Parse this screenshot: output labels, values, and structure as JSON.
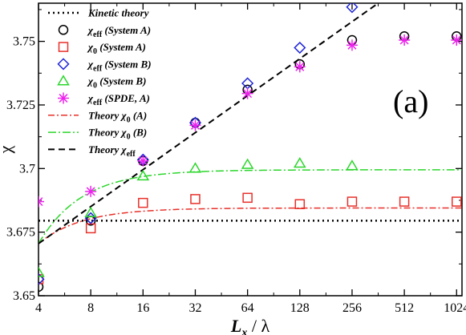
{
  "chart_data": {
    "type": "scatter",
    "panel_label": "(a)",
    "xlabel": "L_x / λ",
    "ylabel": "χ",
    "x_scale": "log2",
    "xlim": [
      4,
      1100
    ],
    "ylim": [
      3.65,
      3.765
    ],
    "x_ticks": [
      4,
      8,
      16,
      32,
      64,
      128,
      256,
      512,
      1024
    ],
    "x_tick_labels": [
      "4",
      "8",
      "16",
      "32",
      "64",
      "128",
      "256",
      "512",
      "1024"
    ],
    "y_ticks": [
      3.65,
      3.675,
      3.7,
      3.725,
      3.75
    ],
    "y_tick_labels": [
      "3.65",
      "3.675",
      "3.7",
      "3.725",
      "3.75"
    ],
    "legend_position": "top-left",
    "colors": {
      "kinetic": "#000000",
      "chi_eff_A": "#000000",
      "chi0_A": "#e8302a",
      "chi_eff_B": "#1f25d8",
      "chi0_B": "#2bd62b",
      "spde": "#ee22ee",
      "theory_A": "#e8302a",
      "theory_B": "#2bd62b",
      "theory_eff": "#000000"
    },
    "series": [
      {
        "key": "kinetic",
        "name": "Kinetic theory",
        "sub": "",
        "tail": "",
        "kind": "hline",
        "value": 3.6795
      },
      {
        "key": "chi_eff_A",
        "name": "χ",
        "sub": "eff",
        "tail": " (System A)",
        "kind": "marker",
        "marker": "circle",
        "x": [
          4,
          8,
          16,
          32,
          64,
          128,
          256,
          512,
          1024
        ],
        "y": [
          3.6535,
          3.6795,
          3.703,
          3.718,
          3.731,
          3.741,
          3.7505,
          3.752,
          3.752
        ]
      },
      {
        "key": "chi0_A",
        "name": "χ",
        "sub": "0",
        "tail": " (System A)",
        "kind": "marker",
        "marker": "square",
        "x": [
          4,
          8,
          16,
          32,
          64,
          128,
          256,
          512,
          1024
        ],
        "y": [
          3.6565,
          3.6765,
          3.6865,
          3.688,
          3.6885,
          3.686,
          3.687,
          3.687,
          3.687
        ]
      },
      {
        "key": "chi_eff_B",
        "name": "χ",
        "sub": "eff",
        "tail": " (System B)",
        "kind": "marker",
        "marker": "diamond",
        "x": [
          4,
          8,
          16,
          32,
          64,
          128,
          256
        ],
        "y": [
          3.6565,
          3.6805,
          3.7035,
          3.718,
          3.7335,
          3.7475,
          3.7635
        ]
      },
      {
        "key": "chi0_B",
        "name": "χ",
        "sub": "0",
        "tail": " (System B)",
        "kind": "marker",
        "marker": "triangle",
        "x": [
          4,
          8,
          16,
          32,
          64,
          128,
          256
        ],
        "y": [
          3.659,
          3.6825,
          3.697,
          3.7,
          3.7015,
          3.702,
          3.701
        ]
      },
      {
        "key": "spde",
        "name": "χ",
        "sub": "eff",
        "tail": " (SPDE, A)",
        "kind": "marker",
        "marker": "asterisk",
        "x": [
          4,
          8,
          16,
          32,
          64,
          128,
          256,
          512,
          1024
        ],
        "y": [
          3.687,
          3.691,
          3.703,
          3.717,
          3.7295,
          3.74,
          3.7485,
          3.7505,
          3.7505
        ]
      },
      {
        "key": "theory_A",
        "name": "Theory χ",
        "sub": "0",
        "tail": " (A)",
        "kind": "curve",
        "dash": "8,3,2,3",
        "asymptote": 3.6845,
        "start": 3.6705
      },
      {
        "key": "theory_B",
        "name": "Theory χ",
        "sub": "0",
        "tail": " (B)",
        "kind": "curve",
        "dash": "10,3,2,3",
        "asymptote": 3.6995,
        "start": 3.6705
      },
      {
        "key": "theory_eff",
        "name": "Theory χ",
        "sub": "eff",
        "tail": "",
        "kind": "line",
        "dash": "8,5",
        "x": [
          4,
          362
        ],
        "y": [
          3.6705,
          3.765
        ]
      }
    ]
  }
}
